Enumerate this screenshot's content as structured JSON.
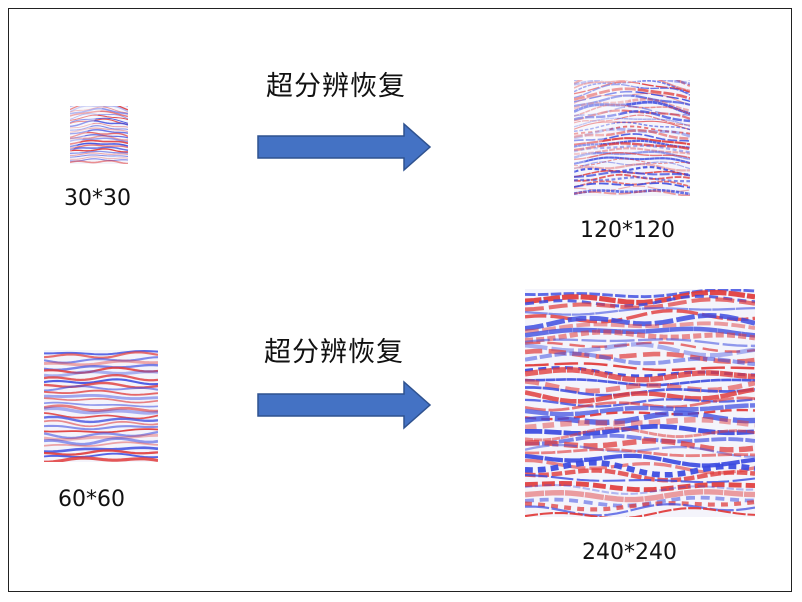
{
  "rows": [
    {
      "process_label": "超分辨恢复",
      "input_size_label": "30*30",
      "output_size_label": "120*120"
    },
    {
      "process_label": "超分辨恢复",
      "input_size_label": "60*60",
      "output_size_label": "240*240"
    }
  ],
  "colors": {
    "arrow": "#4472C4",
    "arrow_stroke": "#2F528F",
    "seismic_positive": "#e03a3a",
    "seismic_negative": "#3a4ae0",
    "border": "#222222"
  },
  "icons": {
    "arrow": "right-arrow-icon",
    "seismic": "seismic-section-image"
  }
}
